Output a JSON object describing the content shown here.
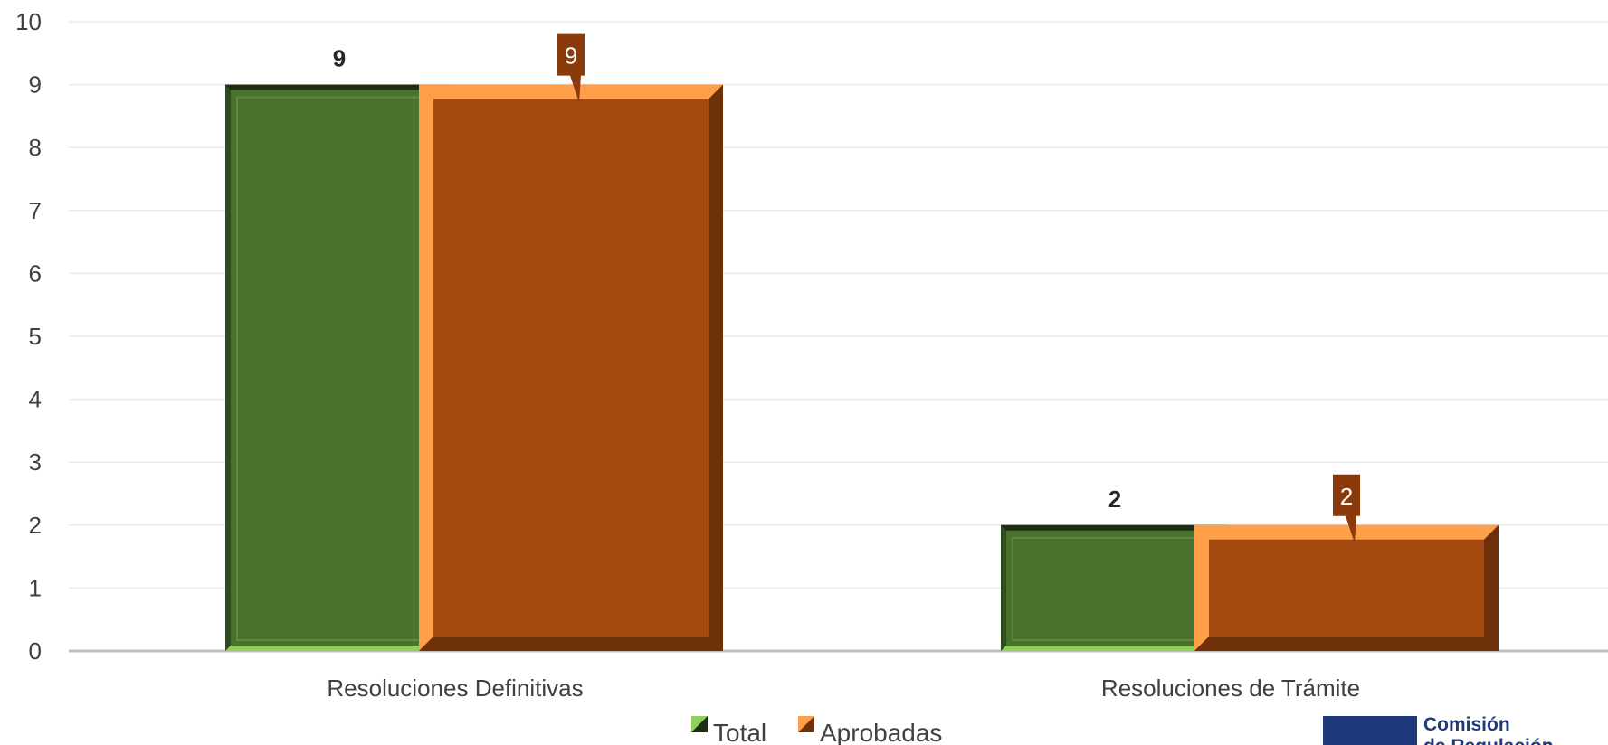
{
  "chart_data": {
    "type": "bar",
    "categories": [
      "Resoluciones Definitivas",
      "Resoluciones de Trámite"
    ],
    "series": [
      {
        "name": "Total",
        "values": [
          9,
          2
        ]
      },
      {
        "name": "Aprobadas",
        "values": [
          9,
          2
        ]
      }
    ],
    "ylim": [
      0,
      10
    ],
    "yticks": [
      0,
      1,
      2,
      3,
      4,
      5,
      6,
      7,
      8,
      9,
      10
    ],
    "grid": true,
    "legend_position": "bottom",
    "colors": {
      "total_face": "#4b722d",
      "total_dark": "#2f4a1c",
      "total_light": "#8fd15a",
      "aprobadas_face": "#a44a10",
      "aprobadas_light": "#ff9f4a",
      "aprobadas_dark": "#6e3008",
      "label_box": "#8b3a0c",
      "grid": "#e9e9e9",
      "axis": "#bfbfbf"
    }
  },
  "logo": {
    "text_line1": "Comisión",
    "text_line2": "de Regulación",
    "color": "#1f3a7a"
  }
}
